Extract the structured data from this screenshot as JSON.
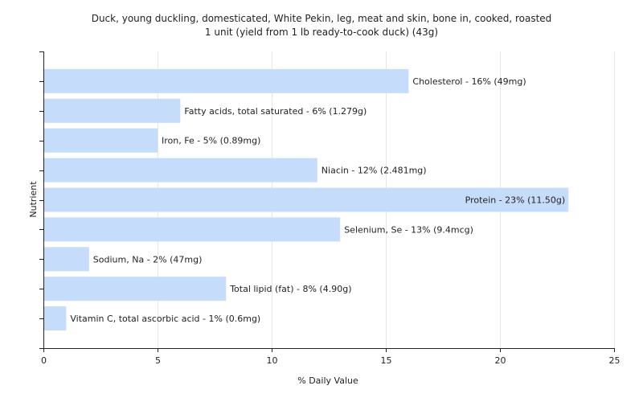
{
  "chart_data": {
    "type": "bar",
    "orientation": "horizontal",
    "title": "Duck, young duckling, domesticated, White Pekin, leg, meat and skin, bone in, cooked, roasted",
    "subtitle": "1 unit (yield from 1 lb ready-to-cook duck) (43g)",
    "xlabel": "% Daily Value",
    "ylabel": "Nutrient",
    "xlim": [
      0,
      25
    ],
    "xticks": [
      0,
      5,
      10,
      15,
      20,
      25
    ],
    "grid": true,
    "bar_color": "#c6dcfb",
    "categories": [
      "Cholesterol",
      "Fatty acids, total saturated",
      "Iron, Fe",
      "Niacin",
      "Protein",
      "Selenium, Se",
      "Sodium, Na",
      "Total lipid (fat)",
      "Vitamin C, total ascorbic acid"
    ],
    "values": [
      16,
      6,
      5,
      12,
      23,
      13,
      2,
      8,
      1
    ],
    "labels": [
      "Cholesterol - 16% (49mg)",
      "Fatty acids, total saturated - 6% (1.279g)",
      "Iron, Fe - 5% (0.89mg)",
      "Niacin - 12% (2.481mg)",
      "Protein - 23% (11.50g)",
      "Selenium, Se - 13% (9.4mcg)",
      "Sodium, Na - 2% (47mg)",
      "Total lipid (fat) - 8% (4.90g)",
      "Vitamin C, total ascorbic acid - 1% (0.6mg)"
    ]
  }
}
